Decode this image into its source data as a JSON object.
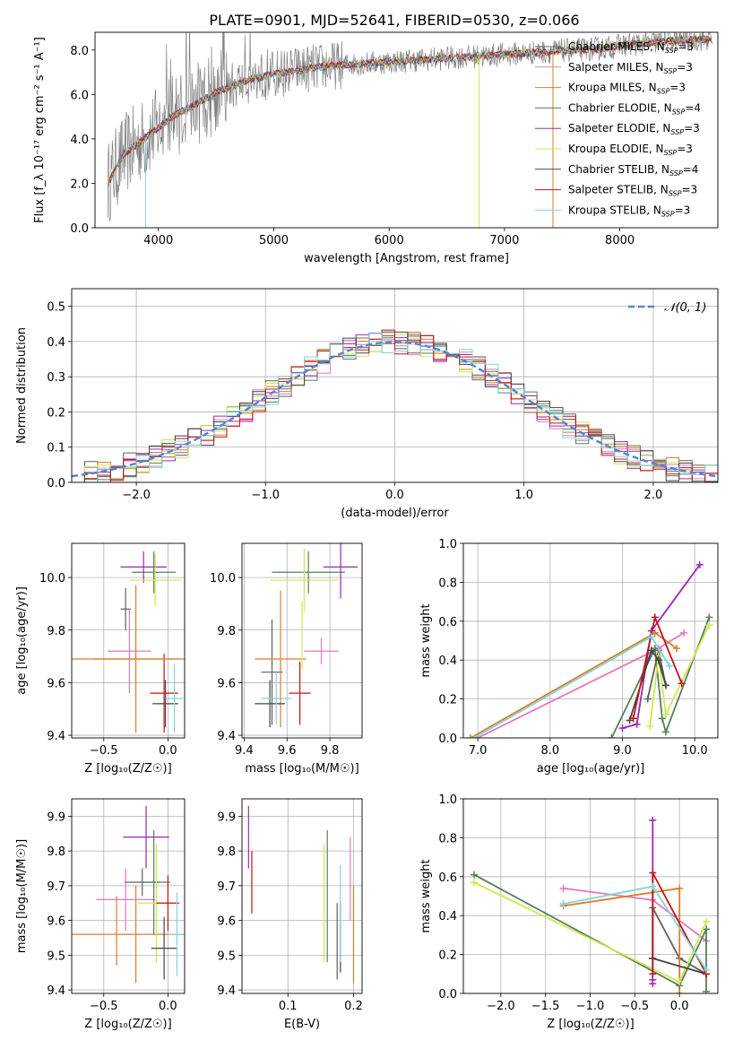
{
  "colors": {
    "Chabrier MILES": "#5f5f5f",
    "Salpeter MILES": "#e377c2",
    "Kroupa MILES": "#e07b2a",
    "Chabrier ELODIE": "#55805a",
    "Salpeter ELODIE": "#9c27b0",
    "Kroupa ELODIE": "#cde84e",
    "Chabrier STELIB": "#444444",
    "Salpeter STELIB": "#c41414",
    "Kroupa STELIB": "#7fd6d6",
    "data": "#808080",
    "normal": "#5b7fdb",
    "grid": "#b0b0b0"
  },
  "chart_data": [
    {
      "id": "spectrum",
      "type": "line",
      "title": "PLATE=0901, MJD=52641, FIBERID=0530, z=0.066",
      "xlabel": "wavelength [Angstrom, rest frame]",
      "ylabel": "Flux [f_λ 10⁻¹⁷ erg cm⁻² s⁻¹ A⁻¹]",
      "xlim": [
        3450,
        8850
      ],
      "ylim": [
        0,
        8.8
      ],
      "xticks": [
        4000,
        5000,
        6000,
        7000,
        8000
      ],
      "yticks": [
        0,
        2,
        4,
        6,
        8
      ],
      "grid": false,
      "legend_position": "right",
      "legend": [
        {
          "name": "Chabrier MILES",
          "nssp": "3"
        },
        {
          "name": "Salpeter MILES",
          "nssp": "3"
        },
        {
          "name": "Kroupa MILES",
          "nssp": "3"
        },
        {
          "name": "Chabrier ELODIE",
          "nssp": "4"
        },
        {
          "name": "Salpeter ELODIE",
          "nssp": "3"
        },
        {
          "name": "Kroupa ELODIE",
          "nssp": "3"
        },
        {
          "name": "Chabrier STELIB",
          "nssp": "4"
        },
        {
          "name": "Salpeter STELIB",
          "nssp": "3"
        },
        {
          "name": "Kroupa STELIB",
          "nssp": "3"
        }
      ],
      "continuum": {
        "x": [
          3550,
          3700,
          3850,
          4000,
          4150,
          4300,
          4500,
          4800,
          5000,
          5200,
          5500,
          5800,
          6100,
          6400,
          6700,
          7000,
          7300,
          7600,
          7800,
          8000,
          8200,
          8400,
          8800
        ],
        "y": [
          1.9,
          3.3,
          3.9,
          4.5,
          5.1,
          5.5,
          6.1,
          6.7,
          6.9,
          7.1,
          7.3,
          7.4,
          7.5,
          7.6,
          7.7,
          7.8,
          7.9,
          8.0,
          8.05,
          8.2,
          8.3,
          8.4,
          8.5
        ]
      }
    },
    {
      "id": "residuals",
      "type": "histogram",
      "xlabel": "(data-model)/error",
      "ylabel": "Normed distribution",
      "xlim": [
        -2.5,
        2.5
      ],
      "ylim": [
        0,
        0.55
      ],
      "xticks": [
        -2,
        -1,
        0,
        1,
        2
      ],
      "yticks": [
        0.0,
        0.1,
        0.2,
        0.3,
        0.4,
        0.5
      ],
      "grid": true,
      "legend_position": "top-right",
      "normal_label": "𝒩(0, 1)",
      "bin_width": 0.1,
      "bin_start": -2.5
    },
    {
      "id": "age_vs_Z",
      "type": "errorbar",
      "xlabel": "Z [log₁₀(Z/Z☉)]",
      "ylabel": "age  [log₁₀(age/yr)]",
      "xlim": [
        -0.75,
        0.13
      ],
      "ylim": [
        9.39,
        10.13
      ],
      "xticks": [
        -0.5,
        0.0
      ],
      "yticks": [
        9.4,
        9.6,
        9.8,
        10.0
      ],
      "grid": true,
      "series": [
        {
          "name": "Chabrier MILES",
          "x": -0.33,
          "xerr": 0.04,
          "y": 9.88,
          "yerr": 0.08
        },
        {
          "name": "Salpeter MILES",
          "x": -0.3,
          "xerr": 0.17,
          "y": 9.72,
          "yerr": 0.16
        },
        {
          "name": "Kroupa MILES",
          "x": -0.25,
          "xerr": 0.33,
          "y": 9.69,
          "yerr": 0.28
        },
        {
          "name": "Chabrier ELODIE",
          "x": -0.11,
          "xerr": 0.17,
          "y": 10.02,
          "yerr": 0.08
        },
        {
          "name": "Salpeter ELODIE",
          "x": -0.19,
          "xerr": 0.18,
          "y": 10.04,
          "yerr": 0.06
        },
        {
          "name": "Kroupa ELODIE",
          "x": -0.1,
          "xerr": 0.2,
          "y": 9.99,
          "yerr": 0.1
        },
        {
          "name": "Chabrier STELIB",
          "x": -0.02,
          "xerr": 0.1,
          "y": 9.52,
          "yerr": 0.09
        },
        {
          "name": "Salpeter STELIB",
          "x": -0.03,
          "xerr": 0.11,
          "y": 9.56,
          "yerr": 0.15
        },
        {
          "name": "Kroupa STELIB",
          "x": 0.05,
          "xerr": 0.07,
          "y": 9.54,
          "yerr": 0.13
        },
        {
          "name": "Kroupa MILES",
          "x": -0.22,
          "xerr": 0.55,
          "y": 9.69,
          "yerr": 0.0
        }
      ]
    },
    {
      "id": "age_vs_mass",
      "type": "errorbar",
      "xlabel": "mass [log₁₀(M/M☉)]",
      "ylabel": "",
      "xlim": [
        9.39,
        9.95
      ],
      "ylim": [
        9.39,
        10.13
      ],
      "xticks": [
        9.4,
        9.6,
        9.8
      ],
      "yticks": [
        9.4,
        9.6,
        9.8,
        10.0
      ],
      "grid": true,
      "series": [
        {
          "name": "Chabrier MILES",
          "x": 9.53,
          "xerr": 0.05,
          "y": 9.64,
          "yerr": 0.2
        },
        {
          "name": "Salpeter MILES",
          "x": 9.76,
          "xerr": 0.08,
          "y": 9.72,
          "yerr": 0.05
        },
        {
          "name": "Kroupa MILES",
          "x": 9.57,
          "xerr": 0.12,
          "y": 9.69,
          "yerr": 0.26
        },
        {
          "name": "Chabrier ELODIE",
          "x": 9.7,
          "xerr": 0.17,
          "y": 10.02,
          "yerr": 0.08
        },
        {
          "name": "Salpeter ELODIE",
          "x": 9.85,
          "xerr": 0.08,
          "y": 10.04,
          "yerr": 0.12
        },
        {
          "name": "Kroupa ELODIE",
          "x": 9.68,
          "xerr": 0.16,
          "y": 9.99,
          "yerr": 0.12
        },
        {
          "name": "Chabrier STELIB",
          "x": 9.52,
          "xerr": 0.07,
          "y": 9.52,
          "yerr": 0.09
        },
        {
          "name": "Salpeter STELIB",
          "x": 9.66,
          "xerr": 0.05,
          "y": 9.56,
          "yerr": 0.12
        },
        {
          "name": "Kroupa STELIB",
          "x": 9.55,
          "xerr": 0.07,
          "y": 9.54,
          "yerr": 0.1
        },
        {
          "name": "Kroupa ELODIE",
          "x": 9.67,
          "xerr": 0.0,
          "y": 9.78,
          "yerr": 0.13
        }
      ]
    },
    {
      "id": "mass_weight_vs_age",
      "type": "line",
      "xlabel": "age  [log₁₀(age/yr)]",
      "ylabel": "mass weight",
      "xlim": [
        6.8,
        10.32
      ],
      "ylim": [
        0,
        1.0
      ],
      "xticks": [
        7,
        8,
        9,
        10
      ],
      "yticks": [
        0.0,
        0.2,
        0.4,
        0.6,
        0.8,
        1.0
      ],
      "grid": true,
      "series": [
        {
          "name": "Chabrier MILES",
          "x": [
            9.35,
            9.5,
            9.6
          ],
          "y": [
            0.2,
            0.45,
            0.27
          ]
        },
        {
          "name": "Salpeter MILES",
          "x": [
            7.0,
            9.5,
            9.85
          ],
          "y": [
            0.0,
            0.46,
            0.54
          ]
        },
        {
          "name": "Kroupa MILES",
          "x": [
            6.9,
            9.45,
            9.75
          ],
          "y": [
            0.0,
            0.54,
            0.46
          ]
        },
        {
          "name": "Chabrier ELODIE",
          "x": [
            8.85,
            9.45,
            9.55,
            9.6,
            10.2
          ],
          "y": [
            0.0,
            0.46,
            0.1,
            0.03,
            0.62
          ]
        },
        {
          "name": "Salpeter ELODIE",
          "x": [
            9.0,
            9.2,
            9.4,
            10.07
          ],
          "y": [
            0.05,
            0.07,
            0.55,
            0.89
          ]
        },
        {
          "name": "Kroupa ELODIE",
          "x": [
            9.38,
            9.5,
            9.6,
            10.2
          ],
          "y": [
            0.06,
            0.42,
            0.12,
            0.58
          ]
        },
        {
          "name": "Chabrier STELIB",
          "x": [
            9.1,
            9.4,
            9.5,
            9.6
          ],
          "y": [
            0.09,
            0.45,
            0.4,
            0.27
          ]
        },
        {
          "name": "Salpeter STELIB",
          "x": [
            9.15,
            9.45,
            9.82
          ],
          "y": [
            0.1,
            0.62,
            0.28
          ]
        },
        {
          "name": "Kroupa STELIB",
          "x": [
            6.95,
            9.4,
            9.65
          ],
          "y": [
            0.0,
            0.52,
            0.37
          ]
        }
      ]
    },
    {
      "id": "mass_vs_Z",
      "type": "errorbar",
      "xlabel": "Z [log₁₀(Z/Z☉)]",
      "ylabel": "mass [log₁₀(M/M☉)]",
      "xlim": [
        -0.75,
        0.13
      ],
      "ylim": [
        9.39,
        9.95
      ],
      "xticks": [
        -0.5,
        0.0
      ],
      "yticks": [
        9.4,
        9.5,
        9.6,
        9.7,
        9.8,
        9.9
      ],
      "grid": true,
      "series": [
        {
          "name": "Chabrier MILES",
          "x": -0.2,
          "xerr": 0.14,
          "y": 9.71,
          "yerr": 0.04
        },
        {
          "name": "Salpeter MILES",
          "x": -0.33,
          "xerr": 0.23,
          "y": 9.66,
          "yerr": 0.09
        },
        {
          "name": "Kroupa MILES",
          "x": -0.25,
          "xerr": 0.5,
          "y": 9.56,
          "yerr": 0.14
        },
        {
          "name": "Chabrier ELODIE",
          "x": -0.11,
          "xerr": 0.13,
          "y": 9.71,
          "yerr": 0.15
        },
        {
          "name": "Salpeter ELODIE",
          "x": -0.17,
          "xerr": 0.18,
          "y": 9.84,
          "yerr": 0.09
        },
        {
          "name": "Kroupa ELODIE",
          "x": -0.09,
          "xerr": 0.15,
          "y": 9.65,
          "yerr": 0.17
        },
        {
          "name": "Chabrier STELIB",
          "x": -0.03,
          "xerr": 0.1,
          "y": 9.52,
          "yerr": 0.09
        },
        {
          "name": "Salpeter STELIB",
          "x": 0.0,
          "xerr": 0.09,
          "y": 9.65,
          "yerr": 0.08
        },
        {
          "name": "Kroupa STELIB",
          "x": 0.07,
          "xerr": 0.07,
          "y": 9.56,
          "yerr": 0.12
        },
        {
          "name": "Kroupa MILES",
          "x": -0.4,
          "xerr": 0.0,
          "y": 9.57,
          "yerr": 0.1
        }
      ]
    },
    {
      "id": "mass_vs_ebv",
      "type": "errorbar",
      "xlabel": "E(B-V)",
      "ylabel": "",
      "xlim": [
        0.03,
        0.213
      ],
      "ylim": [
        9.39,
        9.95
      ],
      "xticks": [
        0.1,
        0.2
      ],
      "yticks": [
        9.4,
        9.5,
        9.6,
        9.7,
        9.8,
        9.9
      ],
      "grid": true,
      "series": [
        {
          "name": "Chabrier MILES",
          "x": 0.175,
          "y": 9.54,
          "yerr": 0.11
        },
        {
          "name": "Salpeter MILES",
          "x": 0.195,
          "y": 9.72,
          "yerr": 0.12
        },
        {
          "name": "Kroupa MILES",
          "x": 0.2,
          "y": 9.56,
          "yerr": 0.14
        },
        {
          "name": "Chabrier ELODIE",
          "x": 0.16,
          "y": 9.67,
          "yerr": 0.19
        },
        {
          "name": "Salpeter ELODIE",
          "x": 0.04,
          "y": 9.84,
          "yerr": 0.09
        },
        {
          "name": "Kroupa ELODIE",
          "x": 0.155,
          "y": 9.65,
          "yerr": 0.17
        },
        {
          "name": "Chabrier STELIB",
          "x": 0.18,
          "y": 9.55,
          "yerr": 0.1
        },
        {
          "name": "Salpeter STELIB",
          "x": 0.045,
          "y": 9.71,
          "yerr": 0.09
        },
        {
          "name": "Kroupa STELIB",
          "x": 0.18,
          "y": 9.62,
          "yerr": 0.14
        }
      ]
    },
    {
      "id": "mass_weight_vs_Z",
      "type": "line",
      "xlabel": "Z [log₁₀(Z/Z☉)]",
      "ylabel": "mass weight",
      "xlim": [
        -2.42,
        0.43
      ],
      "ylim": [
        0,
        1.0
      ],
      "xticks": [
        -2.0,
        -1.5,
        -1.0,
        -0.5,
        0.0
      ],
      "yticks": [
        0.0,
        0.2,
        0.4,
        0.6,
        0.8,
        1.0
      ],
      "grid": true,
      "series": [
        {
          "name": "Chabrier MILES",
          "x": [
            -0.3,
            -0.3,
            0.0,
            0.3
          ],
          "y": [
            0.18,
            0.44,
            0.18,
            0.1
          ]
        },
        {
          "name": "Salpeter MILES",
          "x": [
            -1.3,
            -0.3,
            0.3
          ],
          "y": [
            0.54,
            0.48,
            0.27
          ]
        },
        {
          "name": "Kroupa MILES",
          "x": [
            -1.3,
            0.0,
            0.0
          ],
          "y": [
            0.45,
            0.54,
            0.0
          ]
        },
        {
          "name": "Chabrier ELODIE",
          "x": [
            -2.3,
            0.0,
            0.3,
            0.3
          ],
          "y": [
            0.61,
            0.04,
            0.33,
            0.01
          ]
        },
        {
          "name": "Salpeter ELODIE",
          "x": [
            -0.3,
            -0.3,
            -0.3
          ],
          "y": [
            0.05,
            0.07,
            0.89
          ]
        },
        {
          "name": "Kroupa ELODIE",
          "x": [
            -2.3,
            0.0,
            0.3
          ],
          "y": [
            0.57,
            0.06,
            0.37
          ]
        },
        {
          "name": "Chabrier STELIB",
          "x": [
            -0.3,
            0.3
          ],
          "y": [
            0.18,
            0.1
          ]
        },
        {
          "name": "Salpeter STELIB",
          "x": [
            -0.3,
            -0.3,
            0.3
          ],
          "y": [
            0.1,
            0.62,
            0.1
          ]
        },
        {
          "name": "Kroupa STELIB",
          "x": [
            -1.3,
            -0.3,
            0.3
          ],
          "y": [
            0.46,
            0.55,
            0.12
          ]
        }
      ]
    }
  ]
}
